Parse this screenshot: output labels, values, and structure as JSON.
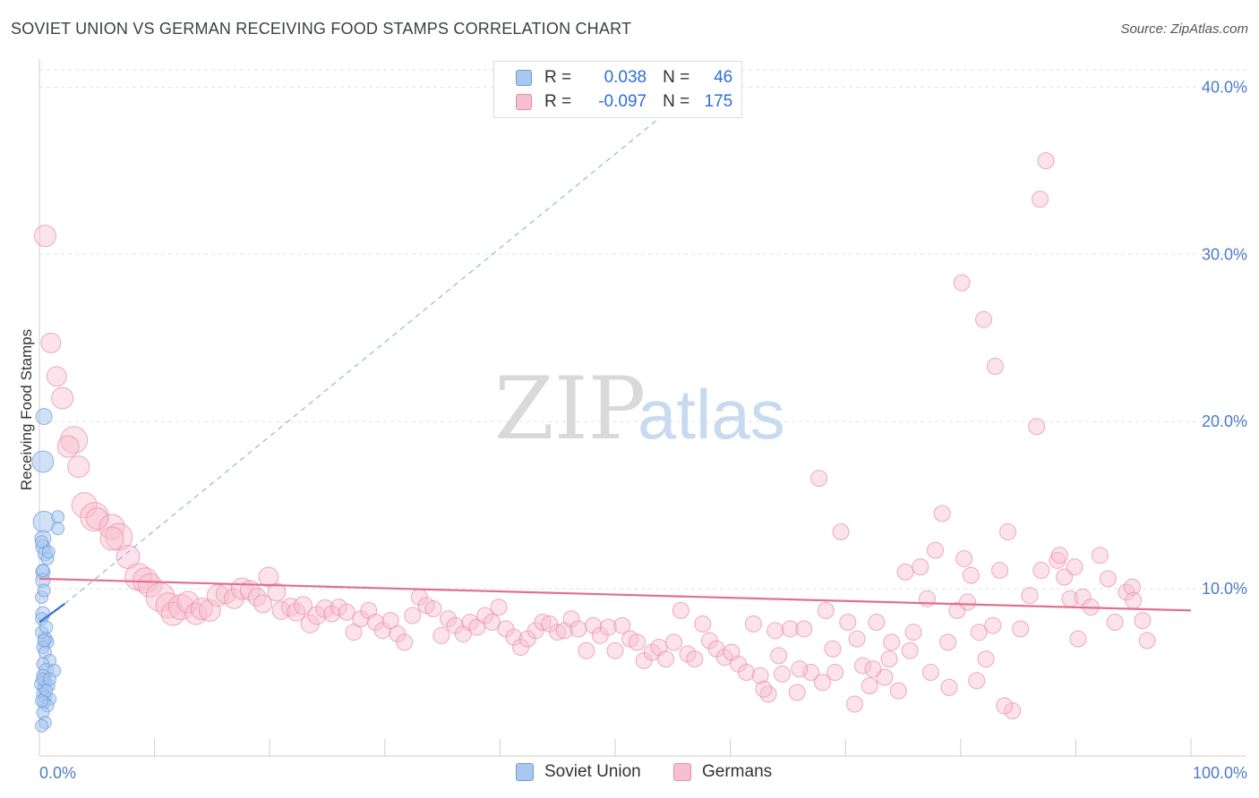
{
  "header": {
    "title": "SOVIET UNION VS GERMAN RECEIVING FOOD STAMPS CORRELATION CHART",
    "source": "Source: ZipAtlas.com"
  },
  "legend": {
    "rows": [
      {
        "r_label": "R =",
        "r_value": "0.038",
        "n_label": "N =",
        "n_value": "46",
        "color": "#a9c7f0",
        "border": "#6a9ad8"
      },
      {
        "r_label": "R =",
        "r_value": "-0.097",
        "n_label": "N =",
        "n_value": "175",
        "color": "#f8bfd0",
        "border": "#e58aa8"
      }
    ]
  },
  "bottom_legend": {
    "items": [
      {
        "label": "Soviet Union",
        "color": "#a9c7f0",
        "border": "#6a9ad8"
      },
      {
        "label": "Germans",
        "color": "#f8bfd0",
        "border": "#e58aa8"
      }
    ]
  },
  "watermark": {
    "zip": "ZIP",
    "atlas": "atlas"
  },
  "chart_data": {
    "type": "scatter",
    "title": "SOVIET UNION VS GERMAN RECEIVING FOOD STAMPS CORRELATION CHART",
    "xlabel": "",
    "ylabel": "Receiving Food Stamps",
    "xlim": [
      0,
      100
    ],
    "ylim": [
      0,
      42
    ],
    "x_tick_labels": [
      {
        "value": 0,
        "label": "0.0%"
      },
      {
        "value": 100,
        "label": "100.0%"
      }
    ],
    "y_tick_labels": [
      {
        "value": 10,
        "label": "10.0%"
      },
      {
        "value": 20,
        "label": "20.0%"
      },
      {
        "value": 30,
        "label": "30.0%"
      },
      {
        "value": 40,
        "label": "40.0%"
      }
    ],
    "grid": true,
    "legend_position": "top-center",
    "series": [
      {
        "name": "Soviet Union",
        "color": "#6a9ad8",
        "fill": "#a9c7f0",
        "points": [
          [
            0.3,
            17.6,
            12
          ],
          [
            0.4,
            14.0,
            12
          ],
          [
            0.4,
            20.3,
            9
          ],
          [
            0.3,
            13.0,
            9
          ],
          [
            0.3,
            12.5,
            8
          ],
          [
            0.5,
            12.1,
            8
          ],
          [
            0.7,
            11.8,
            7
          ],
          [
            0.3,
            11.0,
            8
          ],
          [
            0.3,
            10.5,
            8
          ],
          [
            0.2,
            9.5,
            7
          ],
          [
            0.3,
            8.5,
            8
          ],
          [
            0.2,
            8.2,
            7
          ],
          [
            0.5,
            7.0,
            8
          ],
          [
            0.7,
            6.8,
            7
          ],
          [
            0.3,
            6.5,
            7
          ],
          [
            0.5,
            6.2,
            7
          ],
          [
            0.9,
            5.7,
            7
          ],
          [
            0.3,
            5.5,
            7
          ],
          [
            0.6,
            5.1,
            8
          ],
          [
            1.3,
            5.1,
            7
          ],
          [
            0.3,
            4.8,
            7
          ],
          [
            0.5,
            4.5,
            7
          ],
          [
            0.2,
            4.3,
            8
          ],
          [
            0.4,
            4.1,
            7
          ],
          [
            0.8,
            4.2,
            7
          ],
          [
            0.3,
            3.7,
            7
          ],
          [
            0.5,
            3.5,
            7
          ],
          [
            0.9,
            3.4,
            7
          ],
          [
            0.4,
            3.2,
            7
          ],
          [
            0.7,
            3.0,
            7
          ],
          [
            0.3,
            2.6,
            7
          ],
          [
            0.5,
            2.0,
            7
          ],
          [
            0.2,
            1.8,
            7
          ],
          [
            1.6,
            14.3,
            7
          ],
          [
            1.6,
            13.6,
            7
          ],
          [
            0.2,
            12.8,
            7
          ],
          [
            0.8,
            12.2,
            7
          ],
          [
            0.3,
            11.1,
            7
          ],
          [
            0.2,
            7.4,
            7
          ],
          [
            0.6,
            7.7,
            7
          ],
          [
            0.4,
            6.9,
            7
          ],
          [
            0.3,
            4.6,
            7
          ],
          [
            0.6,
            3.9,
            7
          ],
          [
            0.2,
            3.3,
            7
          ],
          [
            0.9,
            4.6,
            7
          ],
          [
            0.4,
            9.9,
            7
          ]
        ]
      },
      {
        "name": "Germans",
        "color": "#e58aa8",
        "fill": "#f8bfd0",
        "points": [
          [
            0.5,
            31.1,
            12
          ],
          [
            1.0,
            24.7,
            11
          ],
          [
            1.5,
            22.7,
            11
          ],
          [
            2.0,
            21.4,
            12
          ],
          [
            3.0,
            18.9,
            15
          ],
          [
            2.5,
            18.5,
            12
          ],
          [
            3.4,
            17.3,
            12
          ],
          [
            3.9,
            15.0,
            14
          ],
          [
            4.8,
            14.3,
            16
          ],
          [
            5.0,
            14.2,
            12
          ],
          [
            6.3,
            13.7,
            14
          ],
          [
            6.9,
            13.1,
            15
          ],
          [
            6.3,
            13.0,
            13
          ],
          [
            7.7,
            11.9,
            13
          ],
          [
            8.6,
            10.7,
            15
          ],
          [
            9.2,
            10.5,
            14
          ],
          [
            9.6,
            10.2,
            13
          ],
          [
            10.5,
            9.5,
            16
          ],
          [
            11.2,
            9.0,
            14
          ],
          [
            11.6,
            8.5,
            13
          ],
          [
            12.3,
            8.9,
            14
          ],
          [
            12.9,
            9.2,
            12
          ],
          [
            13.6,
            8.5,
            12
          ],
          [
            14.1,
            8.8,
            12
          ],
          [
            14.8,
            8.7,
            12
          ],
          [
            15.5,
            9.6,
            12
          ],
          [
            16.2,
            9.7,
            11
          ],
          [
            16.9,
            9.4,
            11
          ],
          [
            17.6,
            10.0,
            12
          ],
          [
            18.3,
            9.9,
            11
          ],
          [
            18.9,
            9.5,
            10
          ],
          [
            19.4,
            9.1,
            10
          ],
          [
            19.9,
            10.7,
            11
          ],
          [
            20.6,
            9.8,
            10
          ],
          [
            21.0,
            8.7,
            10
          ],
          [
            21.8,
            8.9,
            10
          ],
          [
            22.3,
            8.6,
            10
          ],
          [
            22.9,
            9.0,
            10
          ],
          [
            23.5,
            7.9,
            10
          ],
          [
            24.1,
            8.4,
            10
          ],
          [
            24.8,
            8.8,
            10
          ],
          [
            25.4,
            8.5,
            9
          ],
          [
            26.0,
            8.9,
            9
          ],
          [
            26.7,
            8.6,
            9
          ],
          [
            27.3,
            7.4,
            9
          ],
          [
            27.9,
            8.2,
            9
          ],
          [
            28.6,
            8.7,
            9
          ],
          [
            29.2,
            8.0,
            9
          ],
          [
            29.8,
            7.5,
            9
          ],
          [
            30.5,
            8.1,
            9
          ],
          [
            31.1,
            7.3,
            9
          ],
          [
            31.7,
            6.8,
            9
          ],
          [
            32.4,
            8.4,
            9
          ],
          [
            33.0,
            9.5,
            9
          ],
          [
            33.6,
            9.0,
            9
          ],
          [
            34.2,
            8.8,
            9
          ],
          [
            34.9,
            7.2,
            9
          ],
          [
            35.5,
            8.2,
            9
          ],
          [
            36.1,
            7.8,
            9
          ],
          [
            36.8,
            7.3,
            9
          ],
          [
            37.4,
            8.0,
            9
          ],
          [
            38.0,
            7.7,
            9
          ],
          [
            38.7,
            8.4,
            9
          ],
          [
            39.3,
            8.0,
            9
          ],
          [
            39.9,
            8.9,
            9
          ],
          [
            40.5,
            7.6,
            9
          ],
          [
            41.2,
            7.1,
            9
          ],
          [
            41.8,
            6.5,
            9
          ],
          [
            42.4,
            7.0,
            9
          ],
          [
            43.1,
            7.5,
            9
          ],
          [
            43.7,
            8.0,
            9
          ],
          [
            44.3,
            7.9,
            9
          ],
          [
            45.0,
            7.4,
            9
          ],
          [
            45.6,
            7.5,
            9
          ],
          [
            46.2,
            8.2,
            9
          ],
          [
            46.8,
            7.6,
            9
          ],
          [
            47.5,
            6.3,
            9
          ],
          [
            48.1,
            7.8,
            9
          ],
          [
            48.7,
            7.2,
            9
          ],
          [
            49.4,
            7.7,
            9
          ],
          [
            50.0,
            6.3,
            9
          ],
          [
            50.6,
            7.8,
            9
          ],
          [
            51.3,
            7.0,
            9
          ],
          [
            51.9,
            6.8,
            9
          ],
          [
            52.5,
            5.7,
            9
          ],
          [
            53.2,
            6.2,
            9
          ],
          [
            53.8,
            6.5,
            9
          ],
          [
            54.4,
            5.8,
            9
          ],
          [
            55.1,
            6.8,
            9
          ],
          [
            55.7,
            8.7,
            9
          ],
          [
            56.3,
            6.1,
            9
          ],
          [
            56.9,
            5.8,
            9
          ],
          [
            57.6,
            7.9,
            9
          ],
          [
            58.2,
            6.9,
            9
          ],
          [
            58.8,
            6.4,
            9
          ],
          [
            59.5,
            5.9,
            9
          ],
          [
            60.1,
            6.2,
            9
          ],
          [
            60.7,
            5.5,
            9
          ],
          [
            61.4,
            5.0,
            9
          ],
          [
            62.0,
            7.9,
            9
          ],
          [
            62.6,
            4.8,
            9
          ],
          [
            63.3,
            3.7,
            9
          ],
          [
            63.9,
            7.5,
            9
          ],
          [
            64.5,
            4.9,
            9
          ],
          [
            65.2,
            7.6,
            9
          ],
          [
            65.8,
            3.8,
            9
          ],
          [
            66.4,
            7.6,
            9
          ],
          [
            67.0,
            5.0,
            9
          ],
          [
            67.7,
            16.6,
            9
          ],
          [
            68.3,
            8.7,
            9
          ],
          [
            68.9,
            6.4,
            9
          ],
          [
            69.6,
            13.4,
            9
          ],
          [
            70.2,
            8.0,
            9
          ],
          [
            70.8,
            3.1,
            9
          ],
          [
            71.5,
            5.4,
            9
          ],
          [
            72.1,
            4.2,
            9
          ],
          [
            72.7,
            8.0,
            9
          ],
          [
            73.4,
            4.7,
            9
          ],
          [
            74.0,
            6.8,
            9
          ],
          [
            74.6,
            3.9,
            9
          ],
          [
            75.2,
            11.0,
            9
          ],
          [
            75.9,
            7.4,
            9
          ],
          [
            76.5,
            11.3,
            9
          ],
          [
            77.1,
            9.4,
            9
          ],
          [
            77.8,
            12.3,
            9
          ],
          [
            78.4,
            14.5,
            9
          ],
          [
            79.0,
            4.1,
            9
          ],
          [
            79.7,
            8.7,
            9
          ],
          [
            80.3,
            11.8,
            9
          ],
          [
            80.9,
            10.8,
            9
          ],
          [
            81.6,
            7.4,
            9
          ],
          [
            82.2,
            5.8,
            9
          ],
          [
            82.8,
            7.8,
            9
          ],
          [
            83.4,
            11.1,
            9
          ],
          [
            84.1,
            13.4,
            9
          ],
          [
            80.1,
            28.3,
            9
          ],
          [
            82.0,
            26.1,
            9
          ],
          [
            83.0,
            23.3,
            9
          ],
          [
            84.5,
            2.7,
            9
          ],
          [
            86.0,
            9.6,
            9
          ],
          [
            87.0,
            11.1,
            9
          ],
          [
            88.4,
            11.7,
            9
          ],
          [
            89.0,
            10.7,
            9
          ],
          [
            89.5,
            9.4,
            9
          ],
          [
            86.6,
            19.7,
            9
          ],
          [
            86.9,
            33.3,
            9
          ],
          [
            87.4,
            35.6,
            9
          ],
          [
            88.6,
            12.0,
            9
          ],
          [
            89.9,
            11.3,
            9
          ],
          [
            90.6,
            9.5,
            9
          ],
          [
            90.2,
            7.0,
            9
          ],
          [
            91.3,
            8.9,
            9
          ],
          [
            92.1,
            12.0,
            9
          ],
          [
            92.8,
            10.6,
            9
          ],
          [
            93.4,
            8.0,
            9
          ],
          [
            94.4,
            9.8,
            9
          ],
          [
            94.9,
            10.1,
            9
          ],
          [
            95.0,
            9.3,
            9
          ],
          [
            95.8,
            8.1,
            9
          ],
          [
            96.2,
            6.9,
            9
          ],
          [
            62.9,
            4.0,
            9
          ],
          [
            64.2,
            6.0,
            9
          ],
          [
            66.0,
            5.2,
            9
          ],
          [
            68.0,
            4.4,
            9
          ],
          [
            69.1,
            5.0,
            9
          ],
          [
            71.0,
            7.0,
            9
          ],
          [
            72.4,
            5.2,
            9
          ],
          [
            73.8,
            5.8,
            9
          ],
          [
            75.6,
            6.3,
            9
          ],
          [
            77.4,
            5.0,
            9
          ],
          [
            78.9,
            6.8,
            9
          ],
          [
            80.6,
            9.2,
            9
          ],
          [
            81.4,
            4.5,
            9
          ],
          [
            83.8,
            3.0,
            9
          ],
          [
            85.2,
            7.6,
            9
          ]
        ]
      }
    ],
    "trend_lines": [
      {
        "series": "Soviet Union",
        "style": "solid",
        "x": [
          0.0,
          2.2
        ],
        "y": [
          8.0,
          9.1
        ],
        "color": "#2f6fd6"
      },
      {
        "series": "Soviet Union",
        "style": "dashed-extension",
        "x": [
          2.2,
          58.0
        ],
        "y": [
          9.1,
          40.5
        ],
        "color": "#7fa8e0"
      },
      {
        "series": "Germans",
        "style": "solid",
        "x": [
          0.0,
          100.0
        ],
        "y": [
          10.6,
          8.7
        ],
        "color": "#e0708f"
      }
    ]
  }
}
